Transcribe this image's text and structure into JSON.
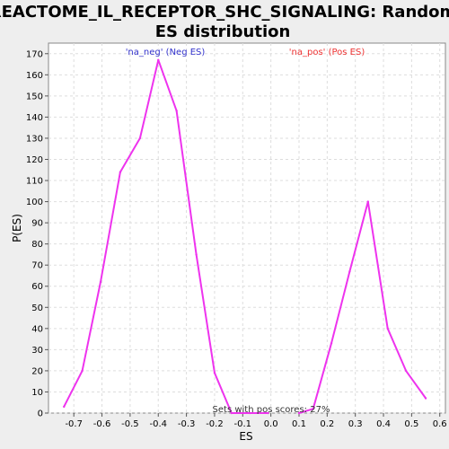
{
  "chart_data": {
    "type": "line",
    "title_lines": [
      "REACTOME_IL_RECEPTOR_SHC_SIGNALING: Random",
      "ES distribution"
    ],
    "xlabel": "ES",
    "ylabel": "P(ES)",
    "xlim": [
      -0.79,
      0.62
    ],
    "ylim": [
      0,
      175
    ],
    "x_ticks": [
      -0.7,
      -0.6,
      -0.5,
      -0.4,
      -0.3,
      -0.2,
      -0.1,
      0.0,
      0.1,
      0.2,
      0.3,
      0.4,
      0.5,
      0.6
    ],
    "x_tick_labels": [
      "-0.7",
      "-0.6",
      "-0.5",
      "-0.4",
      "-0.3",
      "-0.2",
      "-0.1",
      "0.0",
      "0.1",
      "0.2",
      "0.3",
      "0.4",
      "0.5",
      "0.6"
    ],
    "y_ticks": [
      0,
      10,
      20,
      30,
      40,
      50,
      60,
      70,
      80,
      90,
      100,
      110,
      120,
      130,
      140,
      150,
      160,
      170
    ],
    "grid": true,
    "series": [
      {
        "name": "'na_neg' (Neg ES)",
        "legend_color": "#3333cc",
        "color": "#ee33ee",
        "x": [
          -0.735,
          -0.67,
          -0.605,
          -0.535,
          -0.465,
          -0.4,
          -0.335,
          -0.265,
          -0.2,
          -0.14,
          -0.075,
          -0.01
        ],
        "y": [
          3,
          20,
          62,
          114,
          130,
          167,
          143,
          75,
          19,
          0,
          0,
          0
        ]
      },
      {
        "name": "'na_pos' (Pos ES)",
        "legend_color": "#ee3333",
        "color": "#ee33ee",
        "x": [
          0.1,
          0.15,
          0.215,
          0.28,
          0.345,
          0.415,
          0.48,
          0.55
        ],
        "y": [
          0,
          2,
          33,
          67,
          100,
          40,
          20,
          7
        ]
      }
    ],
    "annotation": "Sets with pos scores: 27%"
  }
}
